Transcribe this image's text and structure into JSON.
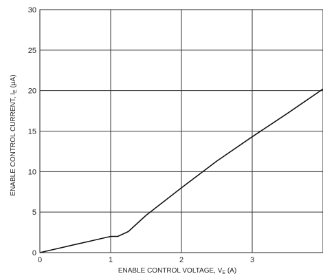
{
  "chart_data": {
    "type": "line",
    "xlabel": "ENABLE CONTROL VOLTAGE, V",
    "xlabel_sub": "E",
    "xlabel_unit": " (A)",
    "ylabel": "ENABLE CONTROL CURRENT, I",
    "ylabel_sub": "E",
    "ylabel_unit": " (µA)",
    "xlim": [
      0,
      4
    ],
    "ylim": [
      0,
      30
    ],
    "x_ticks": [
      0,
      1,
      2,
      3
    ],
    "y_ticks": [
      0,
      5,
      10,
      15,
      20,
      25,
      30
    ],
    "grid": true,
    "series": [
      {
        "color": "#111111",
        "x": [
          0,
          0.25,
          0.5,
          0.75,
          1.0,
          1.1,
          1.25,
          1.5,
          2.0,
          2.5,
          3.0,
          3.5,
          4.0
        ],
        "y": [
          0,
          0.5,
          1.0,
          1.5,
          2.0,
          2.0,
          2.6,
          4.6,
          8.0,
          11.3,
          14.3,
          17.2,
          20.2
        ]
      }
    ]
  }
}
